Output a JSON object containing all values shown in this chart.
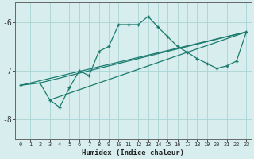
{
  "xlabel": "Humidex (Indice chaleur)",
  "bg_color": "#d8eeee",
  "line_color": "#1a7a6e",
  "grid_color": "#aad4d4",
  "xlim": [
    -0.5,
    23.5
  ],
  "ylim": [
    -8.4,
    -5.6
  ],
  "xticks": [
    0,
    1,
    2,
    3,
    4,
    5,
    6,
    7,
    8,
    9,
    10,
    11,
    12,
    13,
    14,
    15,
    16,
    17,
    18,
    19,
    20,
    21,
    22,
    23
  ],
  "yticks": [
    -8,
    -7,
    -6
  ],
  "main_line": {
    "x": [
      0,
      2,
      3,
      4,
      5,
      6,
      7,
      8,
      9,
      10,
      11,
      12,
      13,
      14,
      15,
      16,
      17,
      18,
      19,
      20,
      21,
      22,
      23
    ],
    "y": [
      -7.3,
      -7.25,
      -7.6,
      -7.75,
      -7.35,
      -7.0,
      -7.1,
      -6.6,
      -6.5,
      -6.05,
      -6.05,
      -6.05,
      -5.88,
      -6.1,
      -6.3,
      -6.5,
      -6.62,
      -6.75,
      -6.85,
      -6.95,
      -6.9,
      -6.8,
      -6.2
    ]
  },
  "straight_lines": [
    {
      "x": [
        0,
        23
      ],
      "y": [
        -7.3,
        -6.2
      ]
    },
    {
      "x": [
        2,
        23
      ],
      "y": [
        -7.25,
        -6.2
      ]
    },
    {
      "x": [
        3,
        23
      ],
      "y": [
        -7.6,
        -6.2
      ]
    }
  ]
}
